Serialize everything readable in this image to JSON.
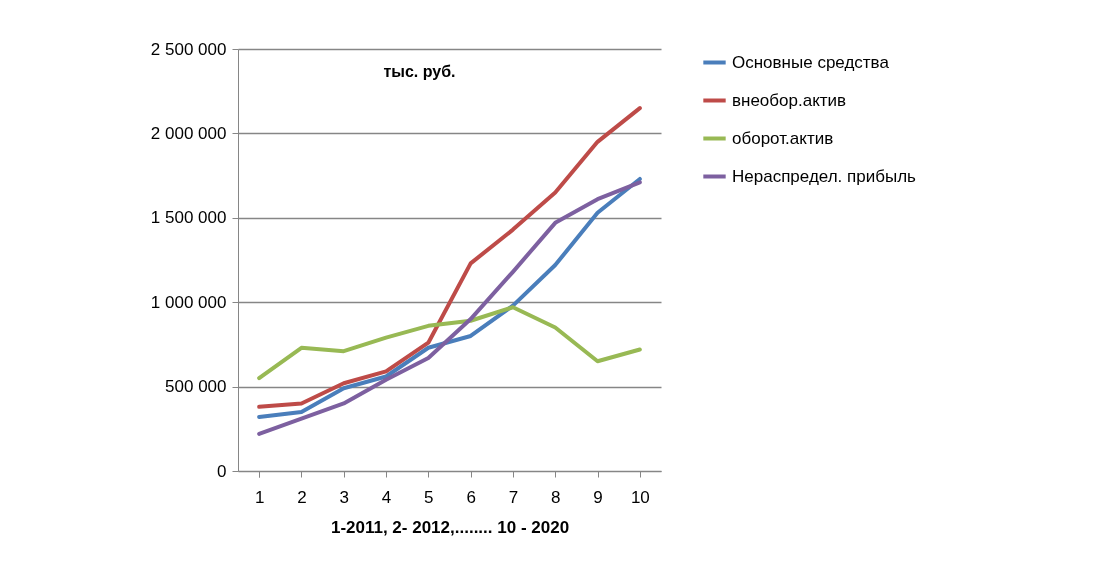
{
  "chart_data": {
    "type": "line",
    "title": "тыс. руб.",
    "xlabel": "1-2011,     2- 2012,........   10 - 2020",
    "categories": [
      "1",
      "2",
      "3",
      "4",
      "5",
      "6",
      "7",
      "8",
      "9",
      "10"
    ],
    "series": [
      {
        "name": "Основные средства",
        "color": "#4a7ebb",
        "values": [
          320000,
          350000,
          490000,
          560000,
          730000,
          800000,
          980000,
          1220000,
          1530000,
          1730000
        ]
      },
      {
        "name": "внеобор.актив",
        "color": "#be4b48",
        "values": [
          380000,
          400000,
          520000,
          590000,
          760000,
          1230000,
          1430000,
          1650000,
          1950000,
          2150000
        ]
      },
      {
        "name": "оборот.актив",
        "color": "#98b954",
        "values": [
          550000,
          730000,
          710000,
          790000,
          860000,
          890000,
          970000,
          850000,
          650000,
          720000
        ]
      },
      {
        "name": "Нераспредел. прибыль",
        "color": "#7d60a0",
        "values": [
          220000,
          310000,
          400000,
          540000,
          670000,
          900000,
          1180000,
          1470000,
          1610000,
          1710000
        ]
      }
    ],
    "ylim": [
      0,
      2500000
    ],
    "yticks": [
      0,
      {
        "value": 500000,
        "label": "500 000"
      },
      {
        "value": 1000000,
        "label": "1 000 000"
      },
      {
        "value": 1500000,
        "label": "1 500 000"
      },
      {
        "value": 2000000,
        "label": "2 000 000"
      },
      {
        "value": 2500000,
        "label": "2 500 000"
      }
    ],
    "grid": "y",
    "legend": "right",
    "line_style": "solid",
    "marker": "none"
  }
}
